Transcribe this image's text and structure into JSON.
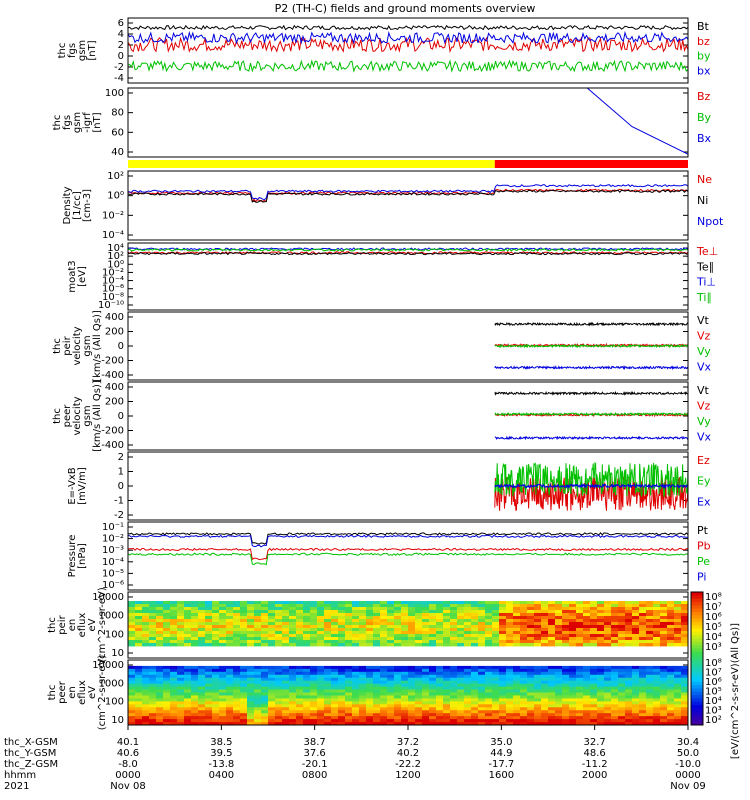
{
  "page": {
    "title": "P2 (TH-C) fields and ground moments overview"
  },
  "chart_data": [
    {
      "type": "line",
      "name": "fgs_gsm",
      "ylabel": [
        "thc",
        "fgs",
        "gsm",
        "[nT]"
      ],
      "yticks": [
        "6",
        "4",
        "2",
        "0",
        "-2",
        "-4"
      ],
      "ylim": [
        -5,
        6.5
      ],
      "series": [
        {
          "name": "Bt",
          "color": "#000000",
          "level": 4.8,
          "amp": 0.35
        },
        {
          "name": "bz",
          "color": "#e00000",
          "level": 1.8,
          "amp": 1.2
        },
        {
          "name": "by",
          "color": "#00c000",
          "level": -2.0,
          "amp": 0.9
        },
        {
          "name": "bx",
          "color": "#0000e0",
          "level": 3.0,
          "amp": 0.9
        }
      ]
    },
    {
      "type": "line",
      "name": "fgs_gsm_igrf",
      "ylabel": [
        "thc",
        "fgs",
        "gsm",
        "-igrf",
        "[nT]"
      ],
      "yticks": [
        "100",
        "80",
        "60",
        "40"
      ],
      "ylim": [
        25,
        100
      ],
      "series": [
        {
          "name": "Bz",
          "color": "#e00000"
        },
        {
          "name": "By",
          "color": "#00c000"
        },
        {
          "name": "Bx",
          "color": "#0000e0",
          "x": [
            0.82,
            0.9,
            1.0
          ],
          "y": [
            100,
            58,
            28
          ]
        }
      ]
    },
    {
      "type": "line",
      "name": "density",
      "log": true,
      "ylabel": [
        "Density",
        "[1/cc]",
        "[cm-3]"
      ],
      "yticks": [
        "10²",
        "10⁰",
        "10⁻²",
        "10⁻⁴"
      ],
      "ylim": [
        -5,
        2.5
      ],
      "series": [
        {
          "name": "Ne",
          "color": "#e00000",
          "level": 0.1
        },
        {
          "name": "Ni",
          "color": "#000000",
          "level": 0.0
        },
        {
          "name": "Npot",
          "color": "#0000e0",
          "level": 0.3
        }
      ]
    },
    {
      "type": "line",
      "name": "temperature",
      "log": true,
      "ylabel": [
        "moat3",
        "[eV]"
      ],
      "yticks": [
        "10⁴",
        "10²",
        "10⁰",
        "10⁻²",
        "10⁻⁴",
        "10⁻⁶",
        "10⁻⁸",
        "10⁻¹⁰"
      ],
      "ylim": [
        -10,
        4.5
      ],
      "series": [
        {
          "name": "Te⊥",
          "color": "#e00000",
          "level": 2.4
        },
        {
          "name": "Te∥",
          "color": "#000000",
          "level": 2.2
        },
        {
          "name": "Ti⊥",
          "color": "#0000e0",
          "level": 3.2
        },
        {
          "name": "Ti∥",
          "color": "#00c000",
          "level": 3.0
        }
      ]
    },
    {
      "type": "line",
      "name": "peir_velocity",
      "ylabel": [
        "thc",
        "peir",
        "velocity",
        "gsm",
        "[km/s (All Qs)]"
      ],
      "yticks": [
        "400",
        "200",
        "0",
        "-200",
        "-400"
      ],
      "ylim": [
        -450,
        450
      ],
      "series": [
        {
          "name": "Vt",
          "color": "#000000",
          "level": 290
        },
        {
          "name": "Vz",
          "color": "#e00000",
          "level": 10
        },
        {
          "name": "Vy",
          "color": "#00c000",
          "level": 0
        },
        {
          "name": "Vx",
          "color": "#0000e0",
          "level": -285
        }
      ]
    },
    {
      "type": "line",
      "name": "peer_velocity",
      "ylabel": [
        "thc",
        "peer",
        "velocity",
        "gsm",
        "[km/s (All Qs)]"
      ],
      "yticks": [
        "400",
        "200",
        "0",
        "-200",
        "-400"
      ],
      "ylim": [
        -450,
        450
      ],
      "series": [
        {
          "name": "Vt",
          "color": "#000000",
          "level": 300
        },
        {
          "name": "Vz",
          "color": "#e00000",
          "level": 15
        },
        {
          "name": "Vy",
          "color": "#00c000",
          "level": 25
        },
        {
          "name": "Vx",
          "color": "#0000e0",
          "level": -290
        }
      ]
    },
    {
      "type": "line",
      "name": "e_field",
      "ylabel": [
        "E=-VxB",
        "[mV/m]"
      ],
      "yticks": [
        "2",
        "1",
        "0",
        "-1",
        "-2"
      ],
      "ylim": [
        -2.2,
        2.2
      ],
      "series": [
        {
          "name": "Ez",
          "color": "#e00000",
          "level": -0.5
        },
        {
          "name": "Ey",
          "color": "#00c000",
          "level": 0.4
        },
        {
          "name": "Ex",
          "color": "#0000e0",
          "level": 0.0
        }
      ]
    },
    {
      "type": "line",
      "name": "pressure",
      "log": true,
      "ylabel": [
        "Pressure",
        "[nPa]"
      ],
      "yticks": [
        "10⁻¹",
        "10⁻²",
        "10⁻³",
        "10⁻⁴",
        "10⁻⁵",
        "10⁻⁶"
      ],
      "ylim": [
        -6.2,
        -0.5
      ],
      "series": [
        {
          "name": "Pt",
          "color": "#000000",
          "level": -1.5
        },
        {
          "name": "Pb",
          "color": "#e00000",
          "level": -2.8
        },
        {
          "name": "Pe",
          "color": "#00c000",
          "level": -3.2
        },
        {
          "name": "Pi",
          "color": "#0000e0",
          "level": -1.7
        }
      ]
    },
    {
      "type": "heatmap",
      "name": "peir_spectrogram",
      "ylabel": [
        "thc",
        "peir",
        "en",
        "eflux",
        "eV",
        "(cm^2-s-sr-eV)"
      ],
      "yticks": [
        "10000",
        "1000",
        "100",
        "10"
      ],
      "ylim": [
        4,
        35000
      ]
    },
    {
      "type": "heatmap",
      "name": "peer_spectrogram",
      "ylabel": [
        "thc",
        "peer",
        "en",
        "eflux",
        "eV",
        "(cm^2-s-sr-eV)"
      ],
      "yticks": [
        "10000",
        "1000",
        "100",
        "10"
      ],
      "ylim": [
        5,
        30000
      ]
    }
  ],
  "quality_bar": {
    "colors": [
      "#ffff00",
      "#ff0000"
    ],
    "switch": 0.655
  },
  "colorbar": {
    "label": "[eV/(cm^2-s-sr-eV)(All Qs)]",
    "ticks_upper": [
      "10⁸",
      "10⁷",
      "10⁶",
      "10⁵",
      "10⁴",
      "10³"
    ],
    "ticks_lower": [
      "10⁸",
      "10⁷",
      "10⁶",
      "10⁵",
      "10⁴",
      "10³",
      "10²"
    ]
  },
  "x_axis": {
    "row_labels": [
      "thc_X-GSM",
      "thc_Y-GSM",
      "thc_Z-GSM",
      "hhmm",
      "2021"
    ],
    "columns": [
      {
        "frac": 0.0,
        "x": "40.1",
        "y": "40.6",
        "z": "-8.0",
        "time": "0000",
        "date": "Nov 08"
      },
      {
        "frac": 0.1667,
        "x": "38.5",
        "y": "39.5",
        "z": "-13.8",
        "time": "0400",
        "date": ""
      },
      {
        "frac": 0.3333,
        "x": "38.7",
        "y": "37.6",
        "z": "-20.1",
        "time": "0800",
        "date": ""
      },
      {
        "frac": 0.5,
        "x": "37.2",
        "y": "40.2",
        "z": "-22.2",
        "time": "1200",
        "date": ""
      },
      {
        "frac": 0.6667,
        "x": "35.0",
        "y": "44.9",
        "z": "-17.7",
        "time": "1600",
        "date": ""
      },
      {
        "frac": 0.8333,
        "x": "32.7",
        "y": "48.6",
        "z": "-11.2",
        "time": "2000",
        "date": ""
      },
      {
        "frac": 1.0,
        "x": "30.4",
        "y": "50.0",
        "z": "-10.0",
        "time": "0000",
        "date": "Nov 09"
      }
    ]
  }
}
